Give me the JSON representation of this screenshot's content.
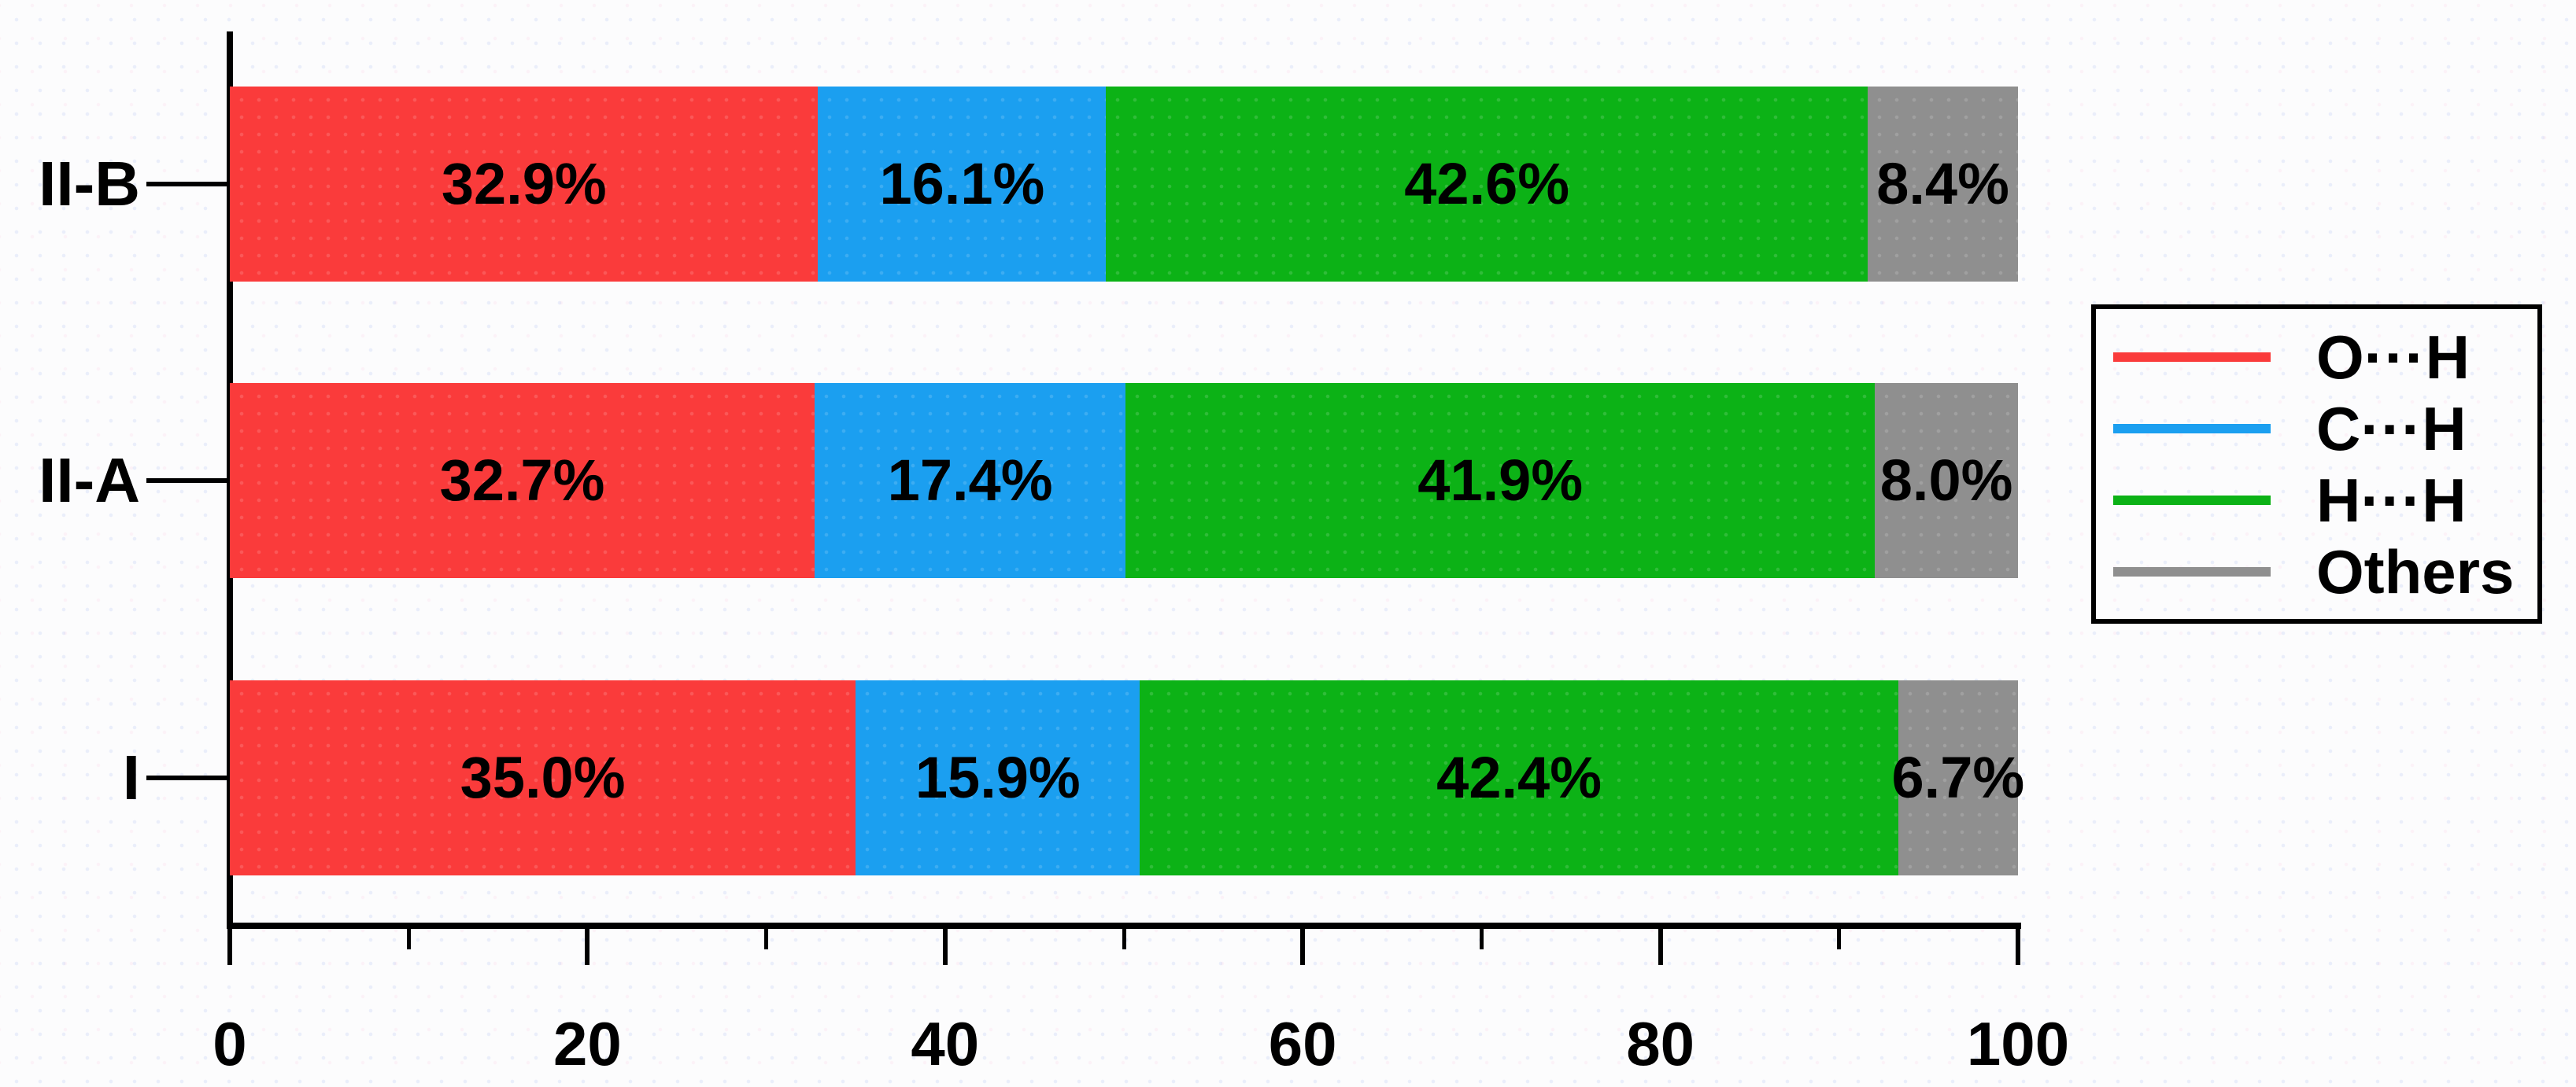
{
  "figure": {
    "background": "#fcfcfd",
    "axis_color": "#000000",
    "label_color": "#000000"
  },
  "chart_data": {
    "type": "bar",
    "stacked": true,
    "orientation": "horizontal",
    "title": "",
    "xlabel": "",
    "ylabel": "",
    "xlim": [
      0,
      100
    ],
    "x_major_ticks": [
      "0",
      "20",
      "40",
      "60",
      "80",
      "100"
    ],
    "x_minor_ticks": [
      10,
      30,
      50,
      70,
      90
    ],
    "grid": false,
    "legend_position": "right-outside",
    "categories": [
      "II-B",
      "II-A",
      "I"
    ],
    "series": [
      {
        "name": "O···H",
        "color": "#fa3b3b",
        "values": [
          32.9,
          32.7,
          35.0
        ]
      },
      {
        "name": "C···H",
        "color": "#1b9ff0",
        "values": [
          16.1,
          17.4,
          15.9
        ]
      },
      {
        "name": "H···H",
        "color": "#0cb216",
        "values": [
          42.6,
          41.9,
          42.4
        ]
      },
      {
        "name": "Others",
        "color": "#8f8f8f",
        "values": [
          8.4,
          8.0,
          6.7
        ]
      }
    ],
    "segment_labels": [
      [
        "32.9%",
        "16.1%",
        "42.6%",
        "8.4%"
      ],
      [
        "32.7%",
        "17.4%",
        "41.9%",
        "8.0%"
      ],
      [
        "35.0%",
        "15.9%",
        "42.4%",
        "6.7%"
      ]
    ]
  }
}
